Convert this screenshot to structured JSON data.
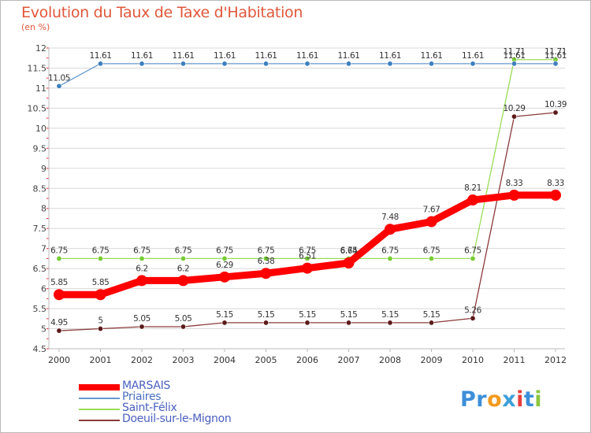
{
  "chart_title": "Evolution du Taux de Taxe d'Habitation",
  "chart_unit": "(en %)",
  "brand_logo": "Proxiti",
  "chart_data": {
    "type": "line",
    "title": "Evolution du Taux de Taxe d'Habitation",
    "subtitle": "(en %)",
    "xlabel": "",
    "ylabel": "",
    "x": [
      "2000",
      "2001",
      "2002",
      "2003",
      "2004",
      "2005",
      "2006",
      "2007",
      "2008",
      "2009",
      "2010",
      "2011",
      "2012"
    ],
    "ylim": [
      4.5,
      12
    ],
    "yticks": [
      4.5,
      5,
      5.5,
      6,
      6.5,
      7,
      7.5,
      8,
      8.5,
      9,
      9.5,
      10,
      10.5,
      11,
      11.5,
      12
    ],
    "ytick_labels": [
      "4.5",
      "5",
      "5.5",
      "6",
      "6.5",
      "7",
      "7.5",
      "8",
      "8.5",
      "9",
      "9.5",
      "10",
      "10.5",
      "11",
      "11.5",
      "12"
    ],
    "grid": "horizontal",
    "legend_position": "bottom-left",
    "series": [
      {
        "name": "MARSAIS",
        "color": "#ff0000",
        "values": [
          5.85,
          5.85,
          6.2,
          6.2,
          6.29,
          6.38,
          6.51,
          6.64,
          7.48,
          7.67,
          8.21,
          8.33,
          8.33
        ],
        "labels": [
          "5.85",
          "5.85",
          "6.2",
          "6.2",
          "6.29",
          "6.38",
          "6.51",
          "6.64",
          "7.48",
          "7.67",
          "8.21",
          "8.33",
          "8.33"
        ]
      },
      {
        "name": "Priaires",
        "color": "#6699cc",
        "marker_color": "#3d7fbf",
        "values": [
          11.05,
          11.61,
          11.61,
          11.61,
          11.61,
          11.61,
          11.61,
          11.61,
          11.61,
          11.61,
          11.61,
          11.61,
          11.61
        ],
        "labels": [
          "11.05",
          "11.61",
          "11.61",
          "11.61",
          "11.61",
          "11.61",
          "11.61",
          "11.61",
          "11.61",
          "11.61",
          "11.61",
          "11.61",
          "11.61"
        ]
      },
      {
        "name": "Saint-Félix",
        "color": "#99dd55",
        "marker_color": "#77cc33",
        "values": [
          6.75,
          6.75,
          6.75,
          6.75,
          6.75,
          6.75,
          6.75,
          6.75,
          6.75,
          6.75,
          6.75,
          11.71,
          11.71
        ],
        "labels": [
          "6.75",
          "6.75",
          "6.75",
          "6.75",
          "6.75",
          "6.75",
          "6.75",
          "6.75",
          "6.75",
          "6.75",
          "6.75",
          "11.71",
          "11.71"
        ]
      },
      {
        "name": "Doeuil-sur-le-Mignon",
        "color": "#8b3a3a",
        "marker_color": "#5c1a1a",
        "values": [
          4.95,
          5,
          5.05,
          5.05,
          5.15,
          5.15,
          5.15,
          5.15,
          5.15,
          5.15,
          5.26,
          10.29,
          10.39
        ],
        "labels": [
          "4.95",
          "5",
          "5.05",
          "5.05",
          "5.15",
          "5.15",
          "5.15",
          "5.15",
          "5.15",
          "5.15",
          "5.26",
          "10.29",
          "10.39"
        ]
      }
    ]
  }
}
